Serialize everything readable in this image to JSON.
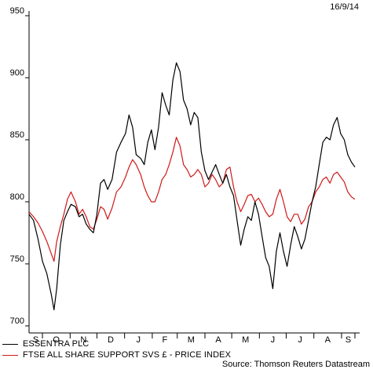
{
  "chart_data": {
    "type": "line",
    "date_label": "16/9/14",
    "source": "Source: Thomson Reuters Datastream",
    "y_ticks": [
      700,
      750,
      800,
      850,
      900,
      950
    ],
    "ylim": [
      700,
      950
    ],
    "x_month_labels": [
      "S",
      "O",
      "N",
      "D",
      "J",
      "F",
      "M",
      "A",
      "M",
      "J",
      "J",
      "A",
      "S"
    ],
    "xlim": [
      "2013-09-16",
      "2014-09-16"
    ],
    "series": [
      {
        "name": "ESSENTRA PLC",
        "color": "#000000",
        "points": [
          [
            "2013-09-16",
            790
          ],
          [
            "2013-09-21",
            785
          ],
          [
            "2013-09-26",
            770
          ],
          [
            "2013-10-01",
            752
          ],
          [
            "2013-10-06",
            742
          ],
          [
            "2013-10-11",
            725
          ],
          [
            "2013-10-14",
            713
          ],
          [
            "2013-10-17",
            730
          ],
          [
            "2013-10-21",
            765
          ],
          [
            "2013-10-25",
            785
          ],
          [
            "2013-10-29",
            792
          ],
          [
            "2013-11-02",
            798
          ],
          [
            "2013-11-07",
            796
          ],
          [
            "2013-11-11",
            788
          ],
          [
            "2013-11-15",
            790
          ],
          [
            "2013-11-19",
            782
          ],
          [
            "2013-11-23",
            778
          ],
          [
            "2013-11-27",
            775
          ],
          [
            "2013-12-01",
            790
          ],
          [
            "2013-12-05",
            815
          ],
          [
            "2013-12-09",
            818
          ],
          [
            "2013-12-13",
            810
          ],
          [
            "2013-12-18",
            818
          ],
          [
            "2013-12-23",
            840
          ],
          [
            "2013-12-28",
            848
          ],
          [
            "2014-01-02",
            855
          ],
          [
            "2014-01-06",
            870
          ],
          [
            "2014-01-10",
            860
          ],
          [
            "2014-01-14",
            838
          ],
          [
            "2014-01-19",
            835
          ],
          [
            "2014-01-23",
            830
          ],
          [
            "2014-01-27",
            848
          ],
          [
            "2014-01-31",
            858
          ],
          [
            "2014-02-04",
            842
          ],
          [
            "2014-02-08",
            860
          ],
          [
            "2014-02-12",
            888
          ],
          [
            "2014-02-16",
            878
          ],
          [
            "2014-02-20",
            870
          ],
          [
            "2014-02-24",
            898
          ],
          [
            "2014-02-28",
            912
          ],
          [
            "2014-03-04",
            905
          ],
          [
            "2014-03-08",
            882
          ],
          [
            "2014-03-12",
            875
          ],
          [
            "2014-03-16",
            862
          ],
          [
            "2014-03-20",
            872
          ],
          [
            "2014-03-24",
            868
          ],
          [
            "2014-03-28",
            840
          ],
          [
            "2014-04-01",
            825
          ],
          [
            "2014-04-05",
            818
          ],
          [
            "2014-04-09",
            824
          ],
          [
            "2014-04-13",
            830
          ],
          [
            "2014-04-17",
            822
          ],
          [
            "2014-04-21",
            815
          ],
          [
            "2014-04-25",
            822
          ],
          [
            "2014-04-29",
            812
          ],
          [
            "2014-05-03",
            805
          ],
          [
            "2014-05-07",
            785
          ],
          [
            "2014-05-11",
            765
          ],
          [
            "2014-05-15",
            778
          ],
          [
            "2014-05-19",
            788
          ],
          [
            "2014-05-23",
            785
          ],
          [
            "2014-05-27",
            800
          ],
          [
            "2014-05-31",
            790
          ],
          [
            "2014-06-04",
            772
          ],
          [
            "2014-06-08",
            755
          ],
          [
            "2014-06-12",
            748
          ],
          [
            "2014-06-16",
            730
          ],
          [
            "2014-06-20",
            760
          ],
          [
            "2014-06-24",
            775
          ],
          [
            "2014-06-28",
            760
          ],
          [
            "2014-07-02",
            748
          ],
          [
            "2014-07-06",
            765
          ],
          [
            "2014-07-10",
            780
          ],
          [
            "2014-07-14",
            772
          ],
          [
            "2014-07-18",
            762
          ],
          [
            "2014-07-22",
            770
          ],
          [
            "2014-07-26",
            785
          ],
          [
            "2014-07-30",
            800
          ],
          [
            "2014-08-03",
            812
          ],
          [
            "2014-08-07",
            830
          ],
          [
            "2014-08-11",
            848
          ],
          [
            "2014-08-15",
            852
          ],
          [
            "2014-08-19",
            850
          ],
          [
            "2014-08-23",
            862
          ],
          [
            "2014-08-27",
            868
          ],
          [
            "2014-08-31",
            855
          ],
          [
            "2014-09-04",
            850
          ],
          [
            "2014-09-08",
            838
          ],
          [
            "2014-09-12",
            832
          ],
          [
            "2014-09-16",
            828
          ]
        ]
      },
      {
        "name": "FTSE ALL SHARE SUPPORT SVS £ - PRICE INDEX",
        "color": "#d01818",
        "points": [
          [
            "2013-09-16",
            792
          ],
          [
            "2013-09-21",
            788
          ],
          [
            "2013-09-26",
            783
          ],
          [
            "2013-10-01",
            776
          ],
          [
            "2013-10-06",
            768
          ],
          [
            "2013-10-11",
            758
          ],
          [
            "2013-10-14",
            752
          ],
          [
            "2013-10-17",
            768
          ],
          [
            "2013-10-21",
            780
          ],
          [
            "2013-10-25",
            790
          ],
          [
            "2013-10-29",
            802
          ],
          [
            "2013-11-02",
            808
          ],
          [
            "2013-11-07",
            800
          ],
          [
            "2013-11-11",
            790
          ],
          [
            "2013-11-15",
            794
          ],
          [
            "2013-11-19",
            788
          ],
          [
            "2013-11-23",
            780
          ],
          [
            "2013-11-27",
            778
          ],
          [
            "2013-12-01",
            786
          ],
          [
            "2013-12-05",
            796
          ],
          [
            "2013-12-09",
            794
          ],
          [
            "2013-12-13",
            786
          ],
          [
            "2013-12-18",
            795
          ],
          [
            "2013-12-23",
            808
          ],
          [
            "2013-12-28",
            812
          ],
          [
            "2014-01-02",
            820
          ],
          [
            "2014-01-06",
            828
          ],
          [
            "2014-01-10",
            834
          ],
          [
            "2014-01-14",
            830
          ],
          [
            "2014-01-19",
            822
          ],
          [
            "2014-01-23",
            812
          ],
          [
            "2014-01-27",
            805
          ],
          [
            "2014-01-31",
            800
          ],
          [
            "2014-02-04",
            800
          ],
          [
            "2014-02-08",
            808
          ],
          [
            "2014-02-12",
            818
          ],
          [
            "2014-02-16",
            822
          ],
          [
            "2014-02-20",
            830
          ],
          [
            "2014-02-24",
            840
          ],
          [
            "2014-02-28",
            852
          ],
          [
            "2014-03-04",
            845
          ],
          [
            "2014-03-08",
            830
          ],
          [
            "2014-03-12",
            826
          ],
          [
            "2014-03-16",
            820
          ],
          [
            "2014-03-20",
            822
          ],
          [
            "2014-03-24",
            826
          ],
          [
            "2014-03-28",
            822
          ],
          [
            "2014-04-01",
            812
          ],
          [
            "2014-04-05",
            815
          ],
          [
            "2014-04-09",
            822
          ],
          [
            "2014-04-13",
            818
          ],
          [
            "2014-04-17",
            812
          ],
          [
            "2014-04-21",
            815
          ],
          [
            "2014-04-25",
            826
          ],
          [
            "2014-04-29",
            828
          ],
          [
            "2014-05-03",
            812
          ],
          [
            "2014-05-07",
            800
          ],
          [
            "2014-05-11",
            792
          ],
          [
            "2014-05-15",
            798
          ],
          [
            "2014-05-19",
            805
          ],
          [
            "2014-05-23",
            806
          ],
          [
            "2014-05-27",
            800
          ],
          [
            "2014-05-31",
            803
          ],
          [
            "2014-06-04",
            798
          ],
          [
            "2014-06-08",
            792
          ],
          [
            "2014-06-12",
            788
          ],
          [
            "2014-06-16",
            790
          ],
          [
            "2014-06-20",
            802
          ],
          [
            "2014-06-24",
            810
          ],
          [
            "2014-06-28",
            800
          ],
          [
            "2014-07-02",
            788
          ],
          [
            "2014-07-06",
            784
          ],
          [
            "2014-07-10",
            790
          ],
          [
            "2014-07-14",
            790
          ],
          [
            "2014-07-18",
            782
          ],
          [
            "2014-07-22",
            786
          ],
          [
            "2014-07-26",
            796
          ],
          [
            "2014-07-30",
            800
          ],
          [
            "2014-08-03",
            808
          ],
          [
            "2014-08-07",
            812
          ],
          [
            "2014-08-11",
            818
          ],
          [
            "2014-08-15",
            820
          ],
          [
            "2014-08-19",
            815
          ],
          [
            "2014-08-23",
            822
          ],
          [
            "2014-08-27",
            824
          ],
          [
            "2014-08-31",
            820
          ],
          [
            "2014-09-04",
            816
          ],
          [
            "2014-09-08",
            808
          ],
          [
            "2014-09-12",
            804
          ],
          [
            "2014-09-16",
            802
          ]
        ]
      }
    ]
  }
}
